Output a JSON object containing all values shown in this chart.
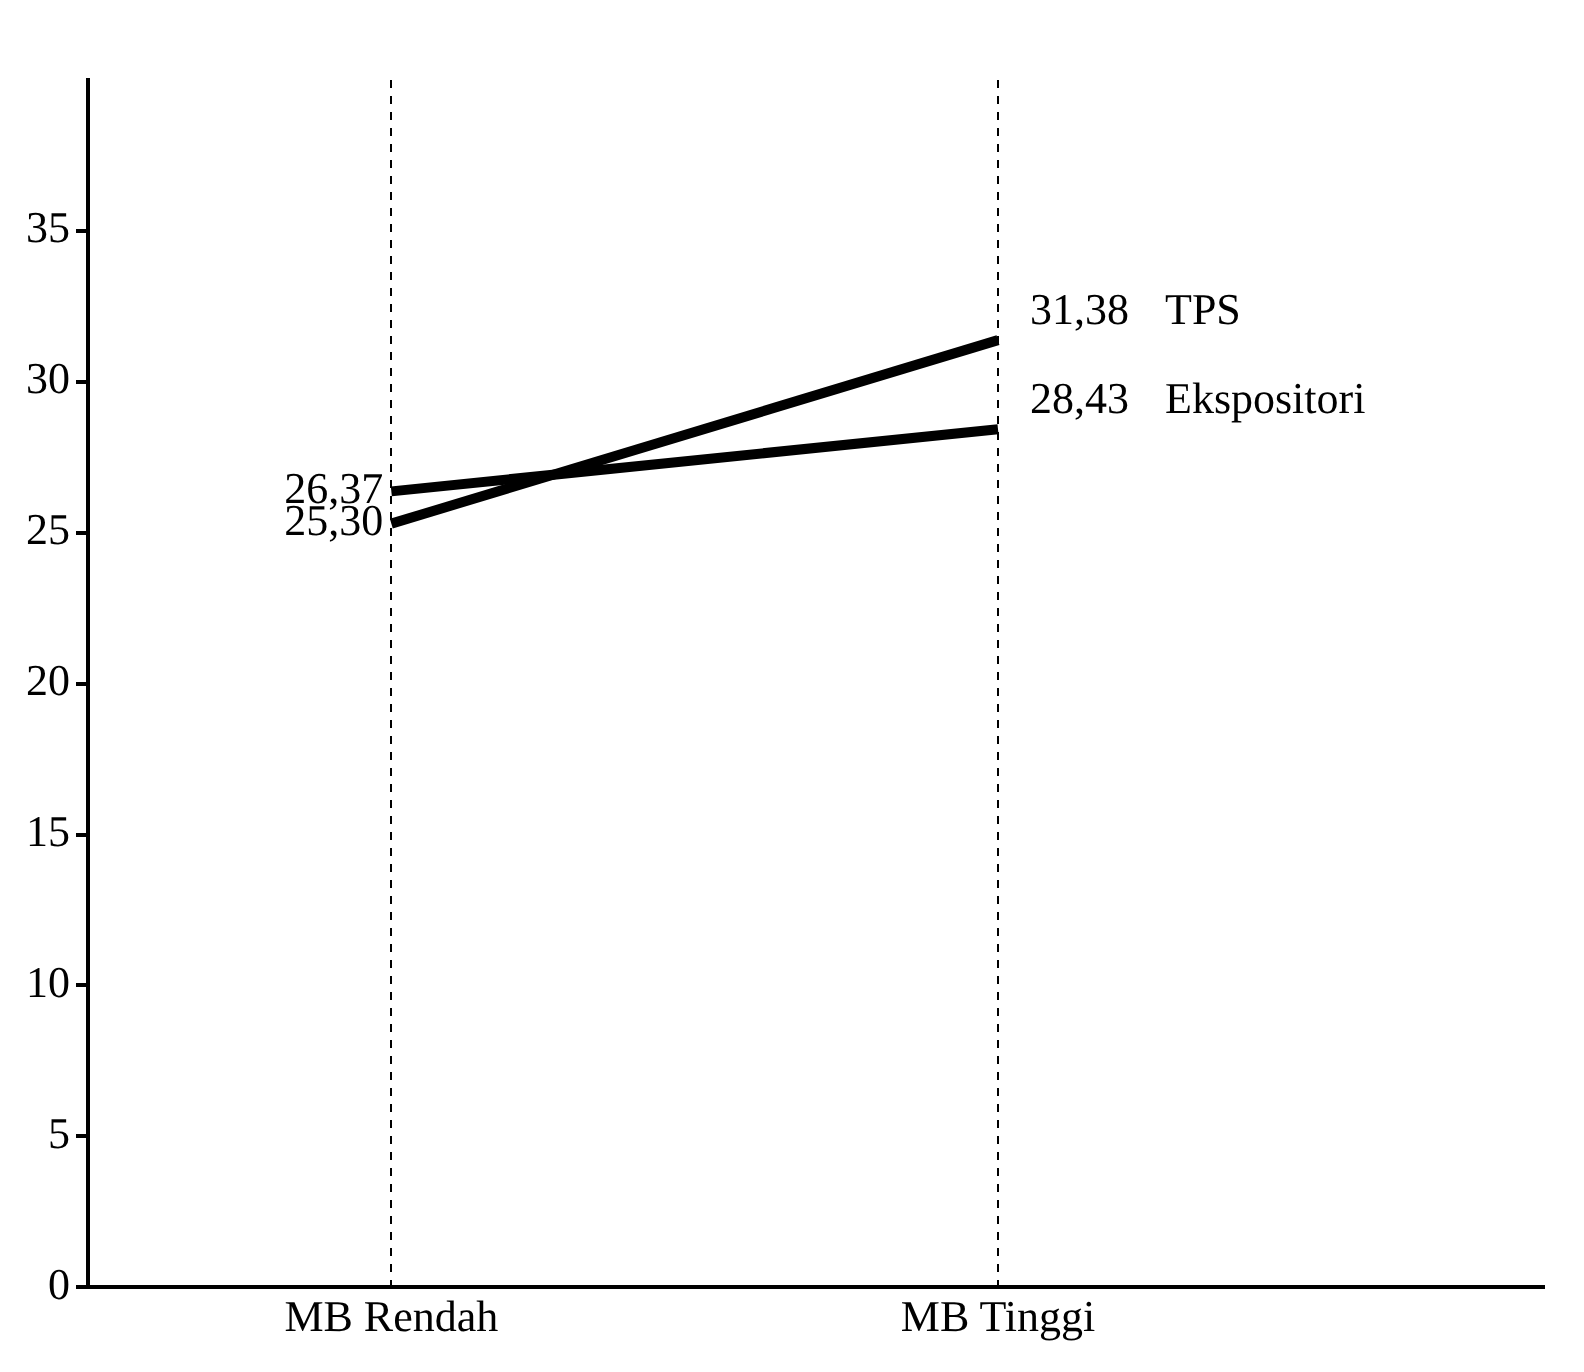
{
  "chart_data": {
    "type": "line",
    "categories": [
      "MB Rendah",
      "MB Tinggi"
    ],
    "series": [
      {
        "name": "TPS",
        "color": "#000000",
        "values": [
          25.3,
          31.38
        ],
        "value_labels": [
          "25,30",
          "31,38"
        ]
      },
      {
        "name": "Ekspositori",
        "color": "#000000",
        "values": [
          26.37,
          28.43
        ],
        "value_labels": [
          "26,37",
          "28,43"
        ]
      }
    ],
    "ylim": [
      0,
      40
    ],
    "yticks": [
      0,
      5,
      10,
      15,
      20,
      25,
      30,
      35
    ],
    "grid": "x",
    "legend": false,
    "marker": "none",
    "line_style": "solid"
  }
}
